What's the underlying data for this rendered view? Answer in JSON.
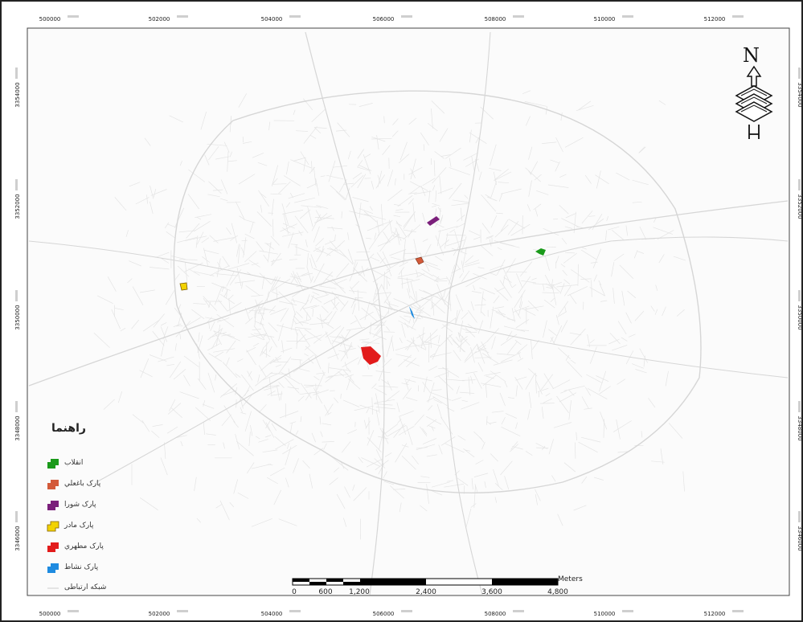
{
  "map": {
    "x_ticks": [
      "500000",
      "502000",
      "504000",
      "506000",
      "508000",
      "510000",
      "512000"
    ],
    "y_ticks": [
      "3354000",
      "3352000",
      "3350000",
      "3348000",
      "3346000"
    ],
    "parks": [
      {
        "name": "park-enghelab",
        "color": "#1a9a1a"
      },
      {
        "name": "park-bagh-ali",
        "color": "#d35a3a"
      },
      {
        "name": "park-shoura",
        "color": "#7b1f7b"
      },
      {
        "name": "park-madar",
        "color": "#f2d200"
      },
      {
        "name": "park-motahari",
        "color": "#e21b1b"
      },
      {
        "name": "park-neshat",
        "color": "#1e8be0"
      }
    ]
  },
  "legend": {
    "title": "راهنما",
    "items": [
      {
        "label": "انقلاب",
        "color": "#1a9a1a",
        "icon": "polygon-swatch"
      },
      {
        "label": "پارک باغعلي",
        "color": "#d35a3a",
        "icon": "polygon-swatch"
      },
      {
        "label": "پارک شورا",
        "color": "#7b1f7b",
        "icon": "polygon-swatch"
      },
      {
        "label": "پارک مادر",
        "color": "#f2d200",
        "icon": "polygon-swatch"
      },
      {
        "label": "پارک مطهري",
        "color": "#e21b1b",
        "icon": "polygon-swatch"
      },
      {
        "label": "پارک نشاط",
        "color": "#1e8be0",
        "icon": "polygon-swatch"
      },
      {
        "label": "شبکه ارتباطی",
        "color": "#cccccc",
        "icon": "line-swatch"
      }
    ]
  },
  "scalebar": {
    "unit": "Meters",
    "ticks": [
      "0",
      "600",
      "1,200",
      "2,400",
      "3,600",
      "4,800"
    ]
  },
  "north_arrow": {
    "letter": "N",
    "icon": "north-arrow-icon"
  },
  "colors": {
    "road": "#e4e4e4",
    "road_major": "#d6d6d6",
    "border": "#222222",
    "grid_label": "#c8c8c8"
  }
}
